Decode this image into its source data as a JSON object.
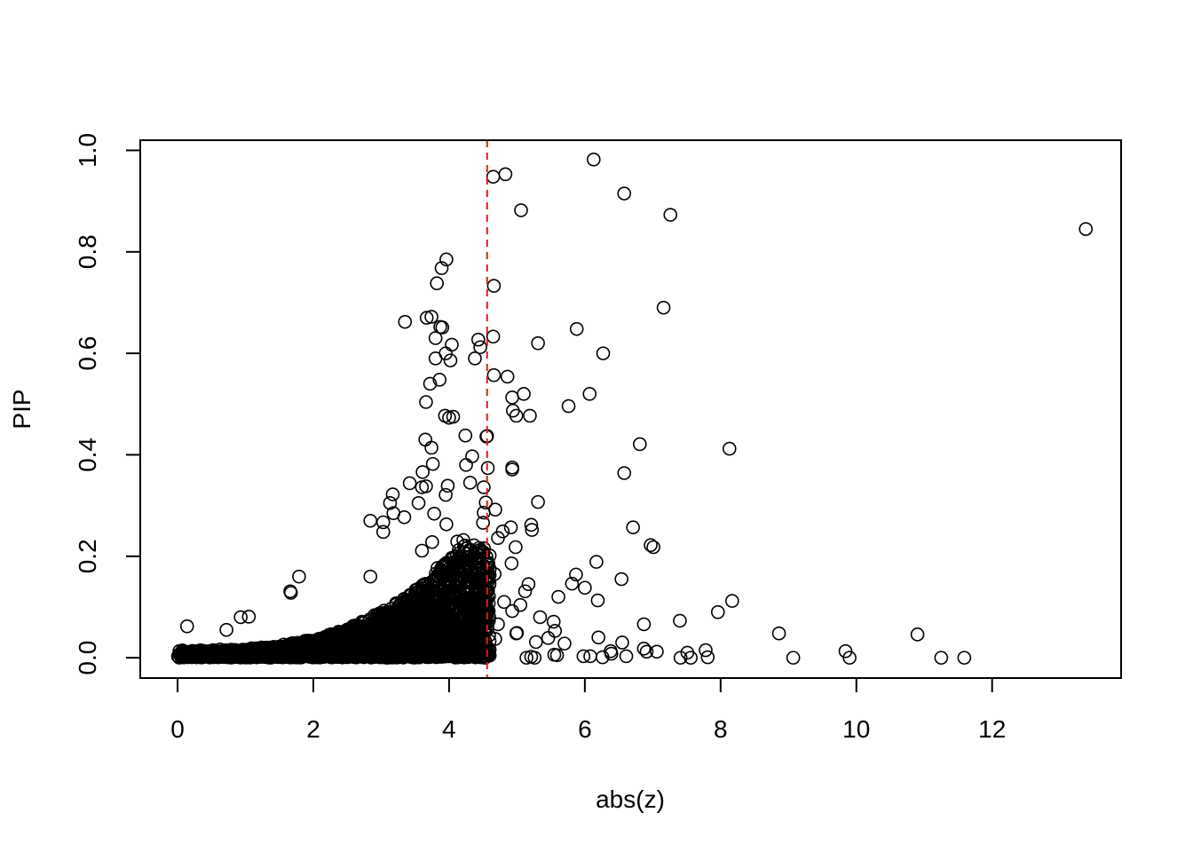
{
  "chart_data": {
    "type": "scatter",
    "title": "",
    "xlabel": "abs(z)",
    "ylabel": "PIP",
    "xlim": [
      -0.55,
      13.9
    ],
    "ylim": [
      -0.04,
      1.02
    ],
    "xticks": [
      0,
      2,
      4,
      6,
      8,
      10,
      12
    ],
    "xtick_labels": [
      "0",
      "2",
      "4",
      "6",
      "8",
      "10",
      "12"
    ],
    "yticks": [
      0.0,
      0.2,
      0.4,
      0.6,
      0.8,
      1.0
    ],
    "ytick_labels": [
      "0.0",
      "0.2",
      "0.4",
      "0.6",
      "0.8",
      "1.0"
    ],
    "grid": false,
    "legend": "none",
    "marker": "open-circle",
    "marker_color": "#000000",
    "reference_line": {
      "orientation": "vertical",
      "x": 4.56,
      "style": "dashed",
      "color": "#e41a1c"
    },
    "series": [
      {
        "points": [
          [
            13.38,
            0.845
          ],
          [
            6.13,
            0.982
          ],
          [
            4.65,
            0.948
          ],
          [
            4.83,
            0.953
          ],
          [
            6.58,
            0.915
          ],
          [
            5.06,
            0.882
          ],
          [
            7.26,
            0.873
          ],
          [
            3.96,
            0.785
          ],
          [
            3.89,
            0.768
          ],
          [
            3.82,
            0.738
          ],
          [
            4.66,
            0.733
          ],
          [
            7.16,
            0.69
          ],
          [
            3.35,
            0.662
          ],
          [
            3.74,
            0.672
          ],
          [
            3.67,
            0.67
          ],
          [
            3.87,
            0.652
          ],
          [
            3.9,
            0.651
          ],
          [
            5.88,
            0.648
          ],
          [
            3.8,
            0.63
          ],
          [
            4.65,
            0.633
          ],
          [
            4.43,
            0.627
          ],
          [
            5.31,
            0.62
          ],
          [
            4.04,
            0.617
          ],
          [
            4.46,
            0.612
          ],
          [
            3.95,
            0.6
          ],
          [
            6.27,
            0.6
          ],
          [
            3.8,
            0.59
          ],
          [
            4.38,
            0.59
          ],
          [
            4.02,
            0.586
          ],
          [
            4.66,
            0.557
          ],
          [
            4.86,
            0.554
          ],
          [
            3.86,
            0.548
          ],
          [
            3.72,
            0.54
          ],
          [
            5.1,
            0.52
          ],
          [
            6.07,
            0.52
          ],
          [
            4.93,
            0.513
          ],
          [
            3.66,
            0.504
          ],
          [
            5.76,
            0.496
          ],
          [
            4.94,
            0.487
          ],
          [
            4.99,
            0.477
          ],
          [
            5.19,
            0.477
          ],
          [
            3.94,
            0.477
          ],
          [
            4.06,
            0.475
          ],
          [
            4.0,
            0.473
          ],
          [
            4.56,
            0.437
          ],
          [
            4.55,
            0.436
          ],
          [
            3.65,
            0.43
          ],
          [
            4.24,
            0.438
          ],
          [
            6.81,
            0.421
          ],
          [
            3.74,
            0.414
          ],
          [
            8.13,
            0.412
          ],
          [
            4.34,
            0.397
          ],
          [
            3.76,
            0.382
          ],
          [
            4.25,
            0.38
          ],
          [
            4.57,
            0.374
          ],
          [
            4.93,
            0.375
          ],
          [
            4.93,
            0.371
          ],
          [
            3.61,
            0.366
          ],
          [
            6.58,
            0.364
          ],
          [
            3.42,
            0.344
          ],
          [
            4.31,
            0.345
          ],
          [
            3.98,
            0.339
          ],
          [
            4.51,
            0.336
          ],
          [
            3.66,
            0.338
          ],
          [
            3.6,
            0.336
          ],
          [
            3.17,
            0.322
          ],
          [
            3.95,
            0.321
          ],
          [
            5.31,
            0.307
          ],
          [
            4.54,
            0.306
          ],
          [
            3.13,
            0.305
          ],
          [
            3.55,
            0.305
          ],
          [
            4.68,
            0.292
          ],
          [
            4.51,
            0.286
          ],
          [
            3.18,
            0.285
          ],
          [
            3.78,
            0.284
          ],
          [
            3.34,
            0.277
          ],
          [
            2.84,
            0.27
          ],
          [
            3.03,
            0.267
          ],
          [
            4.5,
            0.266
          ],
          [
            3.96,
            0.263
          ],
          [
            5.21,
            0.262
          ],
          [
            4.91,
            0.257
          ],
          [
            6.71,
            0.257
          ],
          [
            5.22,
            0.252
          ],
          [
            4.79,
            0.249
          ],
          [
            3.03,
            0.248
          ],
          [
            4.72,
            0.236
          ],
          [
            3.75,
            0.228
          ],
          [
            4.21,
            0.232
          ],
          [
            4.12,
            0.229
          ],
          [
            6.97,
            0.222
          ],
          [
            7.01,
            0.218
          ],
          [
            4.98,
            0.218
          ],
          [
            4.26,
            0.216
          ],
          [
            4.43,
            0.211
          ],
          [
            3.6,
            0.211
          ],
          [
            6.17,
            0.189
          ],
          [
            4.57,
            0.188
          ],
          [
            4.92,
            0.186
          ],
          [
            3.83,
            0.177
          ],
          [
            4.28,
            0.176
          ],
          [
            4.67,
            0.165
          ],
          [
            5.87,
            0.164
          ],
          [
            2.84,
            0.16
          ],
          [
            1.79,
            0.16
          ],
          [
            6.54,
            0.155
          ],
          [
            5.81,
            0.146
          ],
          [
            5.17,
            0.145
          ],
          [
            6.0,
            0.138
          ],
          [
            4.45,
            0.14
          ],
          [
            1.66,
            0.131
          ],
          [
            5.12,
            0.131
          ],
          [
            1.67,
            0.128
          ],
          [
            5.61,
            0.12
          ],
          [
            6.19,
            0.113
          ],
          [
            8.17,
            0.112
          ],
          [
            4.81,
            0.11
          ],
          [
            5.05,
            0.104
          ],
          [
            4.93,
            0.092
          ],
          [
            7.96,
            0.09
          ],
          [
            5.34,
            0.08
          ],
          [
            7.4,
            0.073
          ],
          [
            5.54,
            0.071
          ],
          [
            6.87,
            0.066
          ],
          [
            4.72,
            0.066
          ],
          [
            4.5,
            0.078
          ],
          [
            0.14,
            0.062
          ],
          [
            0.93,
            0.08
          ],
          [
            1.05,
            0.081
          ],
          [
            0.72,
            0.055
          ],
          [
            5.56,
            0.053
          ],
          [
            4.99,
            0.048
          ],
          [
            5.0,
            0.049
          ],
          [
            8.86,
            0.048
          ],
          [
            10.9,
            0.046
          ],
          [
            6.2,
            0.04
          ],
          [
            5.46,
            0.039
          ],
          [
            4.68,
            0.037
          ],
          [
            5.28,
            0.031
          ],
          [
            6.55,
            0.03
          ],
          [
            5.7,
            0.028
          ],
          [
            6.38,
            0.013
          ],
          [
            6.87,
            0.018
          ],
          [
            7.06,
            0.012
          ],
          [
            6.91,
            0.012
          ],
          [
            7.78,
            0.015
          ],
          [
            7.51,
            0.01
          ],
          [
            9.84,
            0.013
          ],
          [
            6.39,
            0.008
          ],
          [
            5.21,
            0.002
          ],
          [
            5.59,
            0.005
          ],
          [
            5.55,
            0.006
          ],
          [
            5.98,
            0.003
          ],
          [
            6.08,
            0.003
          ],
          [
            6.26,
            0.001
          ],
          [
            6.61,
            0.003
          ],
          [
            7.41,
            0.0
          ],
          [
            7.56,
            0.0
          ],
          [
            7.81,
            0.001
          ],
          [
            9.07,
            0.0
          ],
          [
            9.9,
            0.0
          ],
          [
            11.25,
            0.0
          ],
          [
            11.59,
            0.0
          ],
          [
            4.16,
            0.005
          ],
          [
            4.46,
            0.001
          ],
          [
            4.53,
            0.0
          ],
          [
            5.14,
            0.0
          ],
          [
            5.26,
            0.0
          ]
        ]
      }
    ]
  }
}
